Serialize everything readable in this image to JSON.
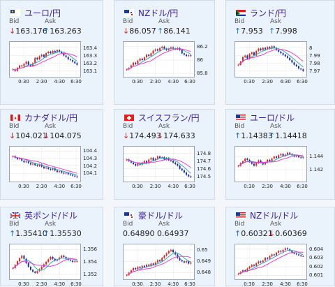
{
  "panels": [
    {
      "name": "ユーロ/円",
      "flag": "eu",
      "bid": "163.176",
      "bid_dir": "down",
      "ask": "163.263",
      "ask_dir": "up",
      "bid_label": "Bid",
      "ask_label": "Ask",
      "chart_data": {
        "type": "candlestick",
        "yticks": [
          "163.4",
          "163.3",
          "163.2",
          "163.1"
        ],
        "ylim": [
          163.05,
          163.45
        ],
        "xticks": [
          "0:30",
          "2:30",
          "4:30",
          "6:30"
        ],
        "close": [
          163.12,
          163.1,
          163.14,
          163.17,
          163.16,
          163.19,
          163.22,
          163.18,
          163.16,
          163.2,
          163.27,
          163.25,
          163.29,
          163.31,
          163.28,
          163.33,
          163.35,
          163.33,
          163.36,
          163.34,
          163.37,
          163.35,
          163.33,
          163.3,
          163.28,
          163.25,
          163.24,
          163.22,
          163.2,
          163.18
        ]
      }
    },
    {
      "name": "NZドル/円",
      "flag": "nz",
      "bid": "86.057",
      "bid_dir": "down",
      "ask": "86.141",
      "ask_dir": "up",
      "bid_label": "Bid",
      "ask_label": "Ask",
      "chart_data": {
        "type": "candlestick",
        "yticks": [
          "86.2",
          "86",
          "85.8"
        ],
        "ylim": [
          85.78,
          86.24
        ],
        "xticks": [
          "0:30",
          "2:30",
          "4:30",
          "6:30"
        ],
        "close": [
          85.86,
          85.88,
          85.92,
          85.96,
          85.94,
          85.99,
          86.02,
          86.0,
          86.04,
          86.08,
          86.06,
          86.1,
          86.14,
          86.16,
          86.14,
          86.18,
          86.2,
          86.17,
          86.15,
          86.17,
          86.19,
          86.17,
          86.16,
          86.18,
          86.15,
          86.1,
          86.08,
          86.06,
          86.07,
          86.06
        ]
      }
    },
    {
      "name": "ランド/円",
      "flag": "za",
      "bid": "7.953",
      "bid_dir": "up",
      "ask": "7.998",
      "ask_dir": "up",
      "bid_label": "Bid",
      "ask_label": "Ask",
      "chart_data": {
        "type": "candlestick",
        "yticks": [
          "8",
          "7.99",
          "7.98",
          "7.97"
        ],
        "ylim": [
          7.965,
          8.005
        ],
        "xticks": [
          "0:30",
          "2:30",
          "4:30",
          "6:30"
        ],
        "close": [
          7.978,
          7.982,
          7.988,
          7.99,
          7.986,
          7.992,
          7.994,
          7.99,
          7.996,
          7.999,
          7.997,
          8.0,
          7.998,
          8.001,
          7.999,
          8.002,
          8.0,
          7.997,
          7.995,
          7.993,
          7.991,
          7.989,
          7.987,
          7.984,
          7.981,
          7.978,
          7.976,
          7.973,
          7.972,
          7.97
        ]
      }
    },
    {
      "name": "カナダドル/円",
      "flag": "ca",
      "bid": "104.021",
      "bid_dir": "down",
      "ask": "104.075",
      "ask_dir": "down",
      "bid_label": "Bid",
      "ask_label": "Ask",
      "chart_data": {
        "type": "candlestick",
        "yticks": [
          "104.4",
          "104.3",
          "104.2",
          "104.1"
        ],
        "ylim": [
          104.02,
          104.43
        ],
        "xticks": [
          "0:30",
          "2:30",
          "4:30",
          "6:30"
        ],
        "close": [
          104.33,
          104.31,
          104.29,
          104.3,
          104.27,
          104.25,
          104.26,
          104.24,
          104.22,
          104.23,
          104.21,
          104.2,
          104.22,
          104.19,
          104.17,
          104.18,
          104.16,
          104.15,
          104.17,
          104.14,
          104.12,
          104.13,
          104.11,
          104.1,
          104.11,
          104.09,
          104.08,
          104.07,
          104.06,
          104.05
        ]
      }
    },
    {
      "name": "スイスフラン/円",
      "flag": "ch",
      "bid": "174.493",
      "bid_dir": "down",
      "ask": "174.633",
      "ask_dir": "down",
      "bid_label": "Bid",
      "ask_label": "Ask",
      "chart_data": {
        "type": "candlestick",
        "yticks": [
          "174.8",
          "174.7",
          "174.6",
          "174.5"
        ],
        "ylim": [
          174.46,
          174.86
        ],
        "xticks": [
          "0:30",
          "2:30",
          "4:30",
          "6:30"
        ],
        "close": [
          174.72,
          174.7,
          174.68,
          174.66,
          174.64,
          174.67,
          174.65,
          174.68,
          174.7,
          174.67,
          174.72,
          174.74,
          174.71,
          174.73,
          174.76,
          174.74,
          174.75,
          174.72,
          174.74,
          174.71,
          174.7,
          174.68,
          174.66,
          174.64,
          174.6,
          174.58,
          174.55,
          174.52,
          174.5,
          174.49
        ]
      }
    },
    {
      "name": "ユーロ/ドル",
      "flag": "us",
      "bid": "1.14383",
      "bid_dir": "up",
      "ask": "1.14418",
      "ask_dir": "up",
      "bid_label": "Bid",
      "ask_label": "Ask",
      "chart_data": {
        "type": "candlestick",
        "yticks": [
          "1.144",
          "1.142"
        ],
        "ylim": [
          1.1405,
          1.1452
        ],
        "xticks": [
          "0:30",
          "2:30",
          "4:30",
          "6:30"
        ],
        "close": [
          1.1426,
          1.143,
          1.1433,
          1.1437,
          1.1435,
          1.1432,
          1.1429,
          1.1426,
          1.143,
          1.1434,
          1.1431,
          1.1428,
          1.1431,
          1.1435,
          1.1433,
          1.1437,
          1.144,
          1.1438,
          1.1442,
          1.1444,
          1.1441,
          1.1443,
          1.1446,
          1.1444,
          1.1442,
          1.144,
          1.1441,
          1.1439,
          1.1438,
          1.1439
        ]
      }
    },
    {
      "name": "英ポンド/ドル",
      "flag": "gb",
      "bid": "1.35410",
      "bid_dir": "up",
      "ask": "1.35530",
      "ask_dir": "up",
      "bid_label": "Bid",
      "ask_label": "Ask",
      "chart_data": {
        "type": "candlestick",
        "yticks": [
          "1.356",
          "1.354",
          "1.352"
        ],
        "ylim": [
          1.3515,
          1.3565
        ],
        "xticks": [
          "0:30",
          "2:30",
          "4:30",
          "6:30"
        ],
        "close": [
          1.353,
          1.3535,
          1.3541,
          1.3546,
          1.355,
          1.3545,
          1.3538,
          1.3532,
          1.3527,
          1.3524,
          1.3522,
          1.3525,
          1.3528,
          1.3532,
          1.3536,
          1.354,
          1.3544,
          1.3548,
          1.3545,
          1.3542,
          1.3544,
          1.3547,
          1.355,
          1.3548,
          1.3545,
          1.3543,
          1.3542,
          1.354,
          1.3541,
          1.3541
        ]
      }
    },
    {
      "name": "豪ドル/ドル",
      "flag": "au",
      "bid": "0.64890",
      "bid_dir": "none",
      "ask": "0.64937",
      "ask_dir": "none",
      "bid_label": "Bid",
      "ask_label": "Ask",
      "chart_data": {
        "type": "candlestick",
        "yticks": [
          "0.65",
          "0.649",
          "0.648"
        ],
        "ylim": [
          0.6476,
          0.6503
        ],
        "xticks": [
          "0:30",
          "2:30",
          "4:30",
          "6:30"
        ],
        "close": [
          0.6478,
          0.648,
          0.6482,
          0.6484,
          0.6483,
          0.6485,
          0.6484,
          0.6486,
          0.6485,
          0.6487,
          0.6486,
          0.6488,
          0.6487,
          0.6489,
          0.6491,
          0.649,
          0.6493,
          0.6495,
          0.6497,
          0.6499,
          0.65,
          0.6498,
          0.6496,
          0.6493,
          0.6491,
          0.649,
          0.6489,
          0.649,
          0.6488,
          0.6489
        ]
      }
    },
    {
      "name": "NZドル/ドル",
      "flag": "us",
      "bid": "0.60321",
      "bid_dir": "up",
      "ask": "0.60369",
      "ask_dir": "down",
      "bid_label": "Bid",
      "ask_label": "Ask",
      "chart_data": {
        "type": "candlestick",
        "yticks": [
          "0.604",
          "0.603",
          "0.602",
          "0.601"
        ],
        "ylim": [
          0.6008,
          0.6043
        ],
        "xticks": [
          "0:30",
          "2:30",
          "4:30",
          "6:30"
        ],
        "close": [
          0.6012,
          0.6014,
          0.6016,
          0.6015,
          0.6018,
          0.602,
          0.6022,
          0.6021,
          0.6024,
          0.6026,
          0.6025,
          0.6027,
          0.603,
          0.6029,
          0.6032,
          0.6034,
          0.6033,
          0.6036,
          0.6038,
          0.6037,
          0.6039,
          0.6041,
          0.604,
          0.6038,
          0.6036,
          0.6035,
          0.6034,
          0.6033,
          0.6032,
          0.6032
        ]
      }
    }
  ],
  "colors": {
    "up": "#d8281e",
    "down": "#1a2fa0",
    "ma": "#e040d0",
    "ma2": "#3aa3c4",
    "title": "#3a1e96"
  }
}
